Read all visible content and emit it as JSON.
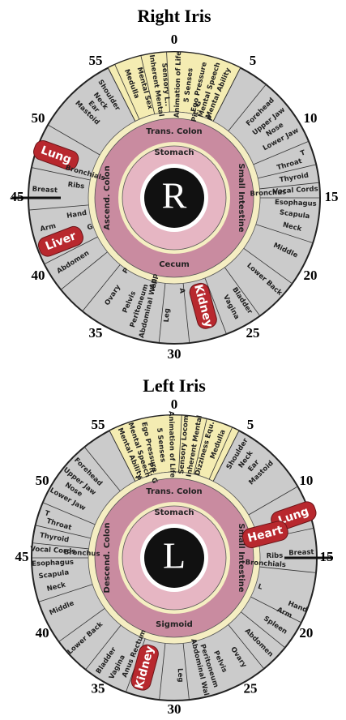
{
  "right_iris": {
    "title": "Right Iris",
    "center": "R",
    "clock": [
      "0",
      "5",
      "10",
      "15",
      "20",
      "25",
      "30",
      "35",
      "40",
      "45",
      "50",
      "55"
    ],
    "rings": [
      "Trans. Colon",
      "Stomach",
      "Small Intestine",
      "Ascend. Colon",
      "Cecum"
    ],
    "zones": [
      "Mental Ability",
      "Mental Speech",
      "Ego Pressure",
      "5 Senses",
      "Animation of Life",
      "Sensory L..",
      "Inherent Mental",
      "Mental Sex",
      "Medulla",
      "Pit. G",
      "P",
      "Forehead",
      "Upper Jaw",
      "Nose",
      "Lower Jaw",
      "T",
      "Throat",
      "Thyroid",
      "Vocal Cords",
      "Esophagus",
      "Scapula",
      "Neck",
      "Bronchus",
      "Middle",
      "Lower Back",
      "Bladder",
      "Vagina",
      "Kidney",
      "A",
      "Leg",
      "Abdominal Wall",
      "Peritoneum",
      "Pelvis",
      "Ovary",
      "P",
      "App",
      "Abdomen",
      "Liver",
      "G",
      "Arm",
      "Hand",
      "Breast",
      "Ribs",
      "Lung",
      "Bronchials",
      "Mastoid",
      "Ear",
      "Neck",
      "Shoulder"
    ]
  },
  "left_iris": {
    "title": "Left Iris",
    "center": "L",
    "clock": [
      "0",
      "5",
      "10",
      "15",
      "20",
      "25",
      "30",
      "35",
      "40",
      "45",
      "50",
      "55"
    ],
    "rings": [
      "Trans. Colon",
      "Stomach",
      "Small Intestine",
      "Descend. Colon",
      "Sigmoid"
    ],
    "zones": [
      "Mental Ability",
      "Mental Speech",
      "Ego Pressure",
      "5 Senses",
      "Animation of Life",
      "Sensory Locom",
      "Inherent Mental",
      "Dizziness Equ.",
      "Medulla",
      "Pit. G",
      "P",
      "Forehead",
      "Upper Jaw",
      "Nose",
      "Lower Jaw",
      "T",
      "Throat",
      "Thyroid",
      "Vocal Cords",
      "Esophagus",
      "Scapula",
      "Neck",
      "Bronchus",
      "Middle",
      "Lower Back",
      "Bladder",
      "Vagina",
      "Anus Rectum",
      "Kidney",
      "Leg",
      "Abdominal Wall",
      "Peritoneum",
      "Pelvis",
      "Ovary",
      "Abdomen",
      "Spleen",
      "Arm",
      "Hand",
      "Breast",
      "Ribs",
      "Lung",
      "Heart",
      "Bronchials",
      "L",
      "Mastoid",
      "Ear",
      "Neck",
      "Shoulder"
    ]
  }
}
